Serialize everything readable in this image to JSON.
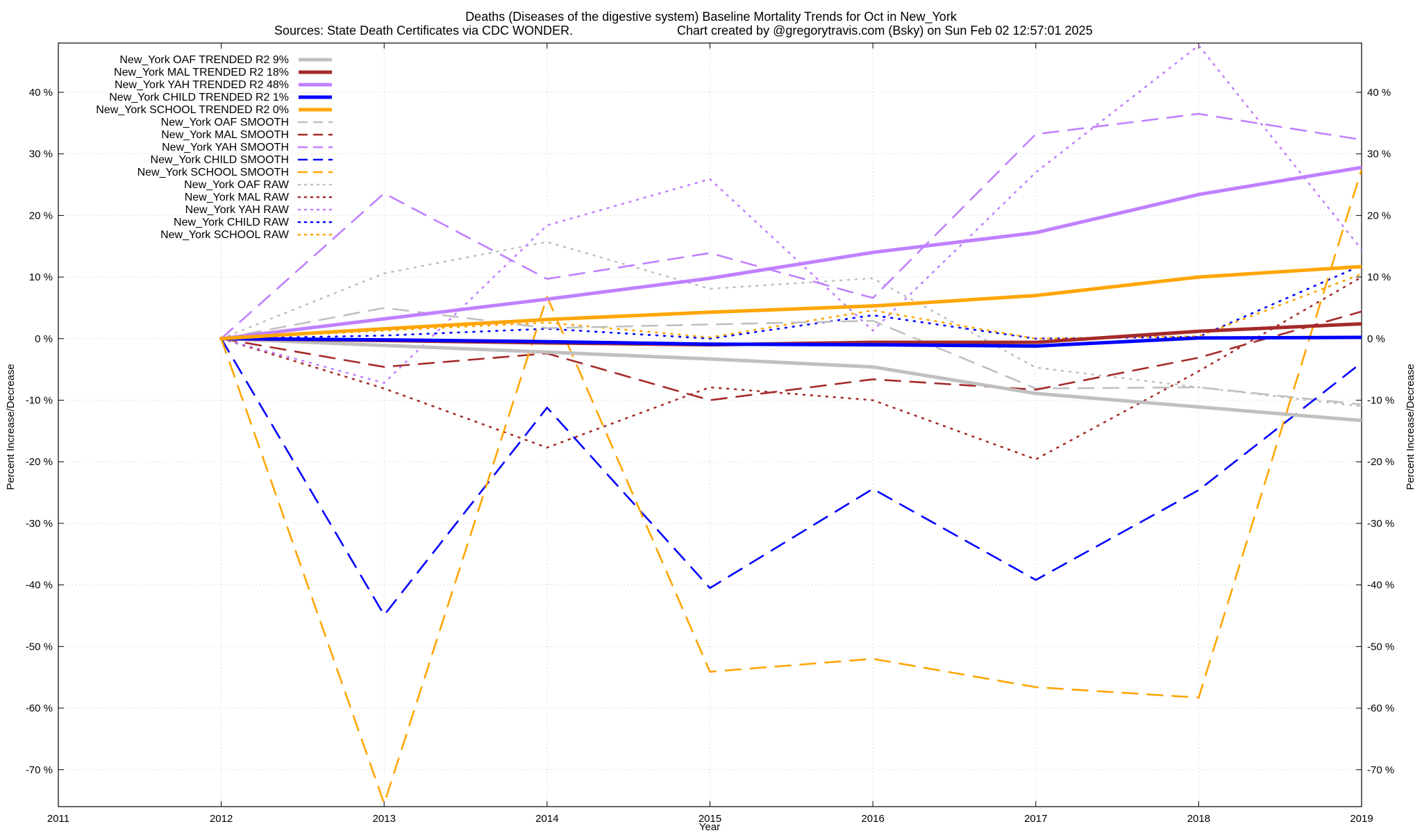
{
  "chart_data": {
    "type": "line",
    "title": "Deaths (Diseases of the digestive system)  Baseline Mortality Trends for Oct in New_York",
    "subtitle_left": "Sources: State Death Certificates via CDC WONDER.",
    "subtitle_right": "Chart created by @gregorytravis.com (Bsky) on Sun Feb 02 12:57:01 2025",
    "xlabel": "Year",
    "ylabel": "Percent Increase/Decrease",
    "ylabel_right": "Percent Increase/Decrease",
    "xlim": [
      2011,
      2019
    ],
    "ylim": [
      -76,
      48
    ],
    "x_ticks": [
      2011,
      2012,
      2013,
      2014,
      2015,
      2016,
      2017,
      2018,
      2019
    ],
    "y_ticks": [
      {
        "v": 40,
        "label": "40 %"
      },
      {
        "v": 30,
        "label": "30 %"
      },
      {
        "v": 20,
        "label": "20 %"
      },
      {
        "v": 10,
        "label": "10 %"
      },
      {
        "v": 0,
        "label": "0 %"
      },
      {
        "v": -10,
        "label": "-10 %"
      },
      {
        "v": -20,
        "label": "-20 %"
      },
      {
        "v": -30,
        "label": "-30 %"
      },
      {
        "v": -40,
        "label": "-40 %"
      },
      {
        "v": -50,
        "label": "-50 %"
      },
      {
        "v": -60,
        "label": "-60 %"
      },
      {
        "v": -70,
        "label": "-70 %"
      }
    ],
    "grid": true,
    "legend_position": "top-left",
    "x": [
      2012,
      2013,
      2014,
      2015,
      2016,
      2017,
      2018,
      2019
    ],
    "series": [
      {
        "name": "New_York OAF TRENDED R2   9%",
        "style": "trend",
        "color": "#c0c0c0",
        "values": [
          0,
          -1.1,
          -2.2,
          -3.3,
          -4.6,
          -8.9,
          -11.1,
          -13.3
        ]
      },
      {
        "name": "New_York MAL TRENDED R2  18%",
        "style": "trend",
        "color": "#a52a2a",
        "values": [
          0,
          -0.3,
          -0.7,
          -1.0,
          -0.6,
          -0.6,
          1.2,
          2.4
        ]
      },
      {
        "name": "New_York YAH TRENDED R2  48%",
        "style": "trend",
        "color": "#c080ff",
        "values": [
          0,
          3.2,
          6.4,
          9.8,
          14.0,
          17.2,
          23.4,
          27.8
        ]
      },
      {
        "name": "New_York CHILD TRENDED R2   1%",
        "style": "trend",
        "color": "#0000ff",
        "values": [
          0,
          -0.2,
          -0.5,
          -0.9,
          -1.0,
          -1.2,
          0.1,
          0.2
        ]
      },
      {
        "name": "New_York SCHOOL TRENDED R2   0%",
        "style": "trend",
        "color": "#ffa500",
        "values": [
          0,
          1.6,
          3.1,
          4.3,
          5.3,
          7.0,
          10.0,
          11.7
        ]
      },
      {
        "name": "New_York OAF SMOOTH",
        "style": "smooth",
        "color": "#c0c0c0",
        "values": [
          0,
          5.0,
          1.7,
          2.3,
          2.9,
          -8.1,
          -7.9,
          -10.7
        ]
      },
      {
        "name": "New_York MAL SMOOTH",
        "style": "smooth",
        "color": "#a52a2a",
        "values": [
          0,
          -4.6,
          -2.4,
          -10.0,
          -6.6,
          -8.3,
          -3.1,
          4.4
        ]
      },
      {
        "name": "New_York YAH SMOOTH",
        "style": "smooth",
        "color": "#c080ff",
        "values": [
          0,
          23.6,
          9.7,
          13.9,
          6.6,
          33.2,
          36.5,
          32.3
        ]
      },
      {
        "name": "New_York CHILD SMOOTH",
        "style": "smooth",
        "color": "#0000ff",
        "values": [
          0,
          -44.9,
          -11.2,
          -40.5,
          -24.4,
          -39.2,
          -24.6,
          -3.9
        ]
      },
      {
        "name": "New_York SCHOOL SMOOTH",
        "style": "smooth",
        "color": "#ffa500",
        "values": [
          0,
          -75.5,
          6.8,
          -54.1,
          -52.0,
          -56.6,
          -58.3,
          27.5
        ]
      },
      {
        "name": "New_York OAF RAW",
        "style": "raw",
        "color": "#c0c0c0",
        "values": [
          0,
          10.6,
          15.7,
          8.1,
          9.8,
          -4.7,
          -7.9,
          -11.0
        ]
      },
      {
        "name": "New_York MAL RAW",
        "style": "raw",
        "color": "#a52a2a",
        "values": [
          0,
          -8.1,
          -17.7,
          -7.9,
          -10.0,
          -19.6,
          -5.3,
          10.0
        ]
      },
      {
        "name": "New_York YAH RAW",
        "style": "raw",
        "color": "#c080ff",
        "values": [
          0,
          -7.2,
          18.4,
          25.9,
          1.3,
          27.0,
          47.6,
          14.5
        ]
      },
      {
        "name": "New_York CHILD RAW",
        "style": "raw",
        "color": "#0000ff",
        "values": [
          0,
          0.5,
          1.6,
          0.0,
          3.8,
          0.0,
          0.3,
          11.9
        ]
      },
      {
        "name": "New_York SCHOOL RAW",
        "style": "raw",
        "color": "#ffa500",
        "values": [
          0,
          1.3,
          2.6,
          0.2,
          4.6,
          0.0,
          0.4,
          10.5
        ]
      }
    ]
  }
}
